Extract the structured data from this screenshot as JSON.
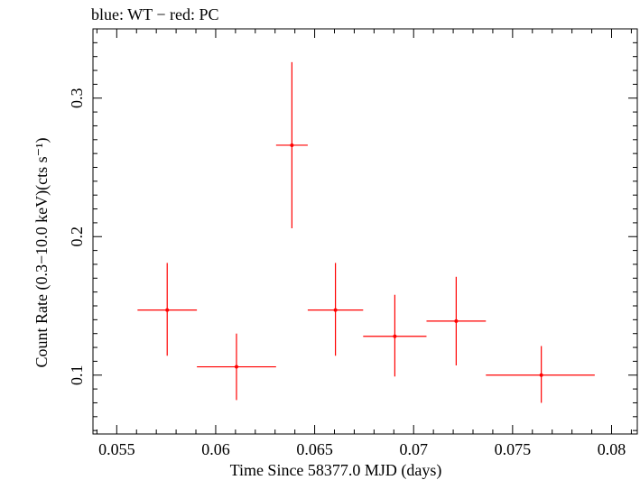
{
  "chart_data": {
    "type": "scatter",
    "title": "blue: WT − red: PC",
    "xlabel": "Time Since 58377.0 MJD (days)",
    "ylabel": "Count Rate (0.3−10.0 keV)(cts s⁻¹)",
    "xlim": [
      0.0538,
      0.0813
    ],
    "ylim": [
      0.0575,
      0.35
    ],
    "x_ticks": [
      {
        "value": 0.055,
        "label": "0.055"
      },
      {
        "value": 0.06,
        "label": "0.06"
      },
      {
        "value": 0.065,
        "label": "0.065"
      },
      {
        "value": 0.07,
        "label": "0.07"
      },
      {
        "value": 0.075,
        "label": "0.075"
      },
      {
        "value": 0.08,
        "label": "0.08"
      }
    ],
    "y_ticks": [
      {
        "value": 0.1,
        "label": "0.1"
      },
      {
        "value": 0.2,
        "label": "0.2"
      },
      {
        "value": 0.3,
        "label": "0.3"
      }
    ],
    "grid": false,
    "legend": "none",
    "series": [
      {
        "color": "#ff0000",
        "points": [
          {
            "x": 0.05755,
            "y": 0.147,
            "xerr_lo": 0.05605,
            "xerr_hi": 0.05905,
            "yerr_lo": 0.114,
            "yerr_hi": 0.181
          },
          {
            "x": 0.06105,
            "y": 0.106,
            "xerr_lo": 0.05905,
            "xerr_hi": 0.06305,
            "yerr_lo": 0.082,
            "yerr_hi": 0.13
          },
          {
            "x": 0.06385,
            "y": 0.266,
            "xerr_lo": 0.06305,
            "xerr_hi": 0.06465,
            "yerr_lo": 0.206,
            "yerr_hi": 0.326
          },
          {
            "x": 0.06605,
            "y": 0.147,
            "xerr_lo": 0.06465,
            "xerr_hi": 0.06745,
            "yerr_lo": 0.114,
            "yerr_hi": 0.181
          },
          {
            "x": 0.06905,
            "y": 0.128,
            "xerr_lo": 0.06745,
            "xerr_hi": 0.07065,
            "yerr_lo": 0.099,
            "yerr_hi": 0.158
          },
          {
            "x": 0.07215,
            "y": 0.139,
            "xerr_lo": 0.07065,
            "xerr_hi": 0.07365,
            "yerr_lo": 0.107,
            "yerr_hi": 0.171
          },
          {
            "x": 0.07645,
            "y": 0.1,
            "xerr_lo": 0.07365,
            "xerr_hi": 0.07915,
            "yerr_lo": 0.08,
            "yerr_hi": 0.121
          }
        ]
      }
    ]
  }
}
